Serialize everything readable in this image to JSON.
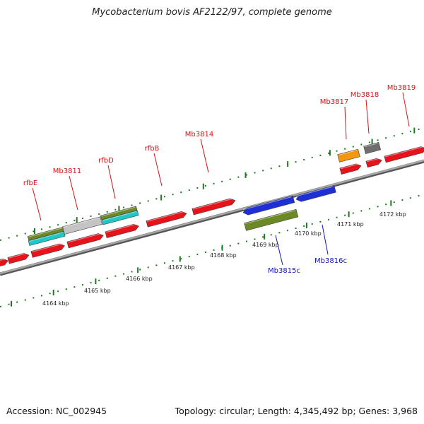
{
  "title": "Mycobacterium bovis AF2122/97, complete genome",
  "footer": {
    "accession": "Accession: NC_002945",
    "topology": "Topology: circular; Length: 4,345,492 bp; Genes: 3,968"
  },
  "colors": {
    "forward_gene": "#e8121b",
    "reverse_gene": "#1e2fd6",
    "forward_label": "#d21414",
    "reverse_label": "#1418b4",
    "tick": "#1e7a1e",
    "backbone": "#8a8a8a",
    "olive": "#6b8a23",
    "cyan": "#1fc7c9",
    "gray": "#c4c4c4",
    "orange": "#f5960f",
    "darkgray": "#6e6e6e"
  },
  "scale_labels": [
    "4164 kbp",
    "4165 kbp",
    "4166 kbp",
    "4167 kbp",
    "4168 kbp",
    "4169 kbp",
    "4170 kbp",
    "4171 kbp",
    "4172 kbp"
  ],
  "gene_labels": [
    {
      "name": "rfbE",
      "strand": "forward"
    },
    {
      "name": "Mb3811",
      "strand": "forward"
    },
    {
      "name": "rfbD",
      "strand": "forward"
    },
    {
      "name": "rfbB",
      "strand": "forward"
    },
    {
      "name": "Mb3814",
      "strand": "forward"
    },
    {
      "name": "Mb3815c",
      "strand": "reverse"
    },
    {
      "name": "Mb3816c",
      "strand": "reverse"
    },
    {
      "name": "Mb3817",
      "strand": "forward"
    },
    {
      "name": "Mb3818",
      "strand": "forward"
    },
    {
      "name": "Mb3819",
      "strand": "forward"
    }
  ]
}
